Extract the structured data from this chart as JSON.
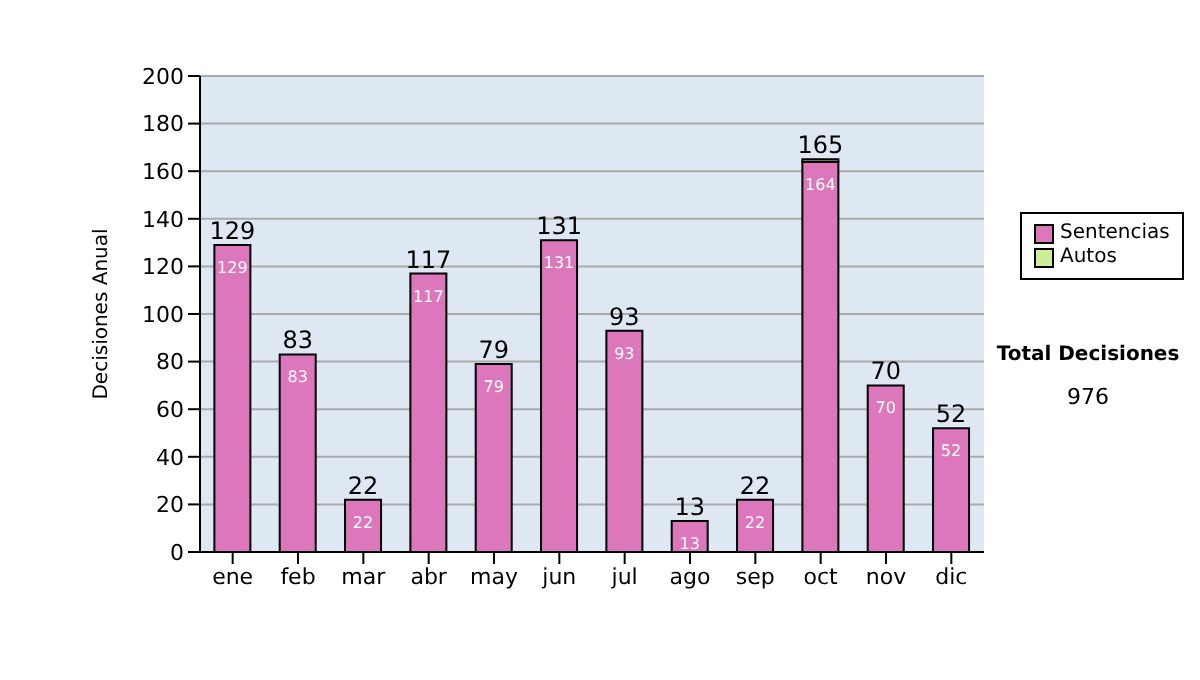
{
  "chart_data": {
    "type": "bar",
    "ylabel": "Decisiones Anual",
    "categories": [
      "ene",
      "feb",
      "mar",
      "abr",
      "may",
      "jun",
      "jul",
      "ago",
      "sep",
      "oct",
      "nov",
      "dic"
    ],
    "series": [
      {
        "name": "Sentencias",
        "color": "#dd77bb",
        "values": [
          129,
          83,
          22,
          117,
          79,
          131,
          93,
          13,
          22,
          164,
          70,
          52
        ],
        "value_labels": [
          "129",
          "83",
          "22",
          "117",
          "79",
          "131",
          "93",
          "13",
          "22",
          "164",
          "70",
          "52"
        ]
      },
      {
        "name": "Autos",
        "color": "#ccee99",
        "values": [
          0,
          0,
          0,
          0,
          0,
          0,
          0,
          0,
          0,
          1,
          0,
          0
        ]
      }
    ],
    "stacked": true,
    "totals": [
      "129",
      "83",
      "22",
      "117",
      "79",
      "131",
      "93",
      "13",
      "22",
      "165",
      "70",
      "52"
    ],
    "ylim": [
      0,
      200
    ],
    "yticks": [
      0,
      20,
      40,
      60,
      80,
      100,
      120,
      140,
      160,
      180,
      200
    ],
    "grid": "y",
    "legend": "right",
    "annotations": [
      "Total Decisiones",
      "976"
    ]
  }
}
